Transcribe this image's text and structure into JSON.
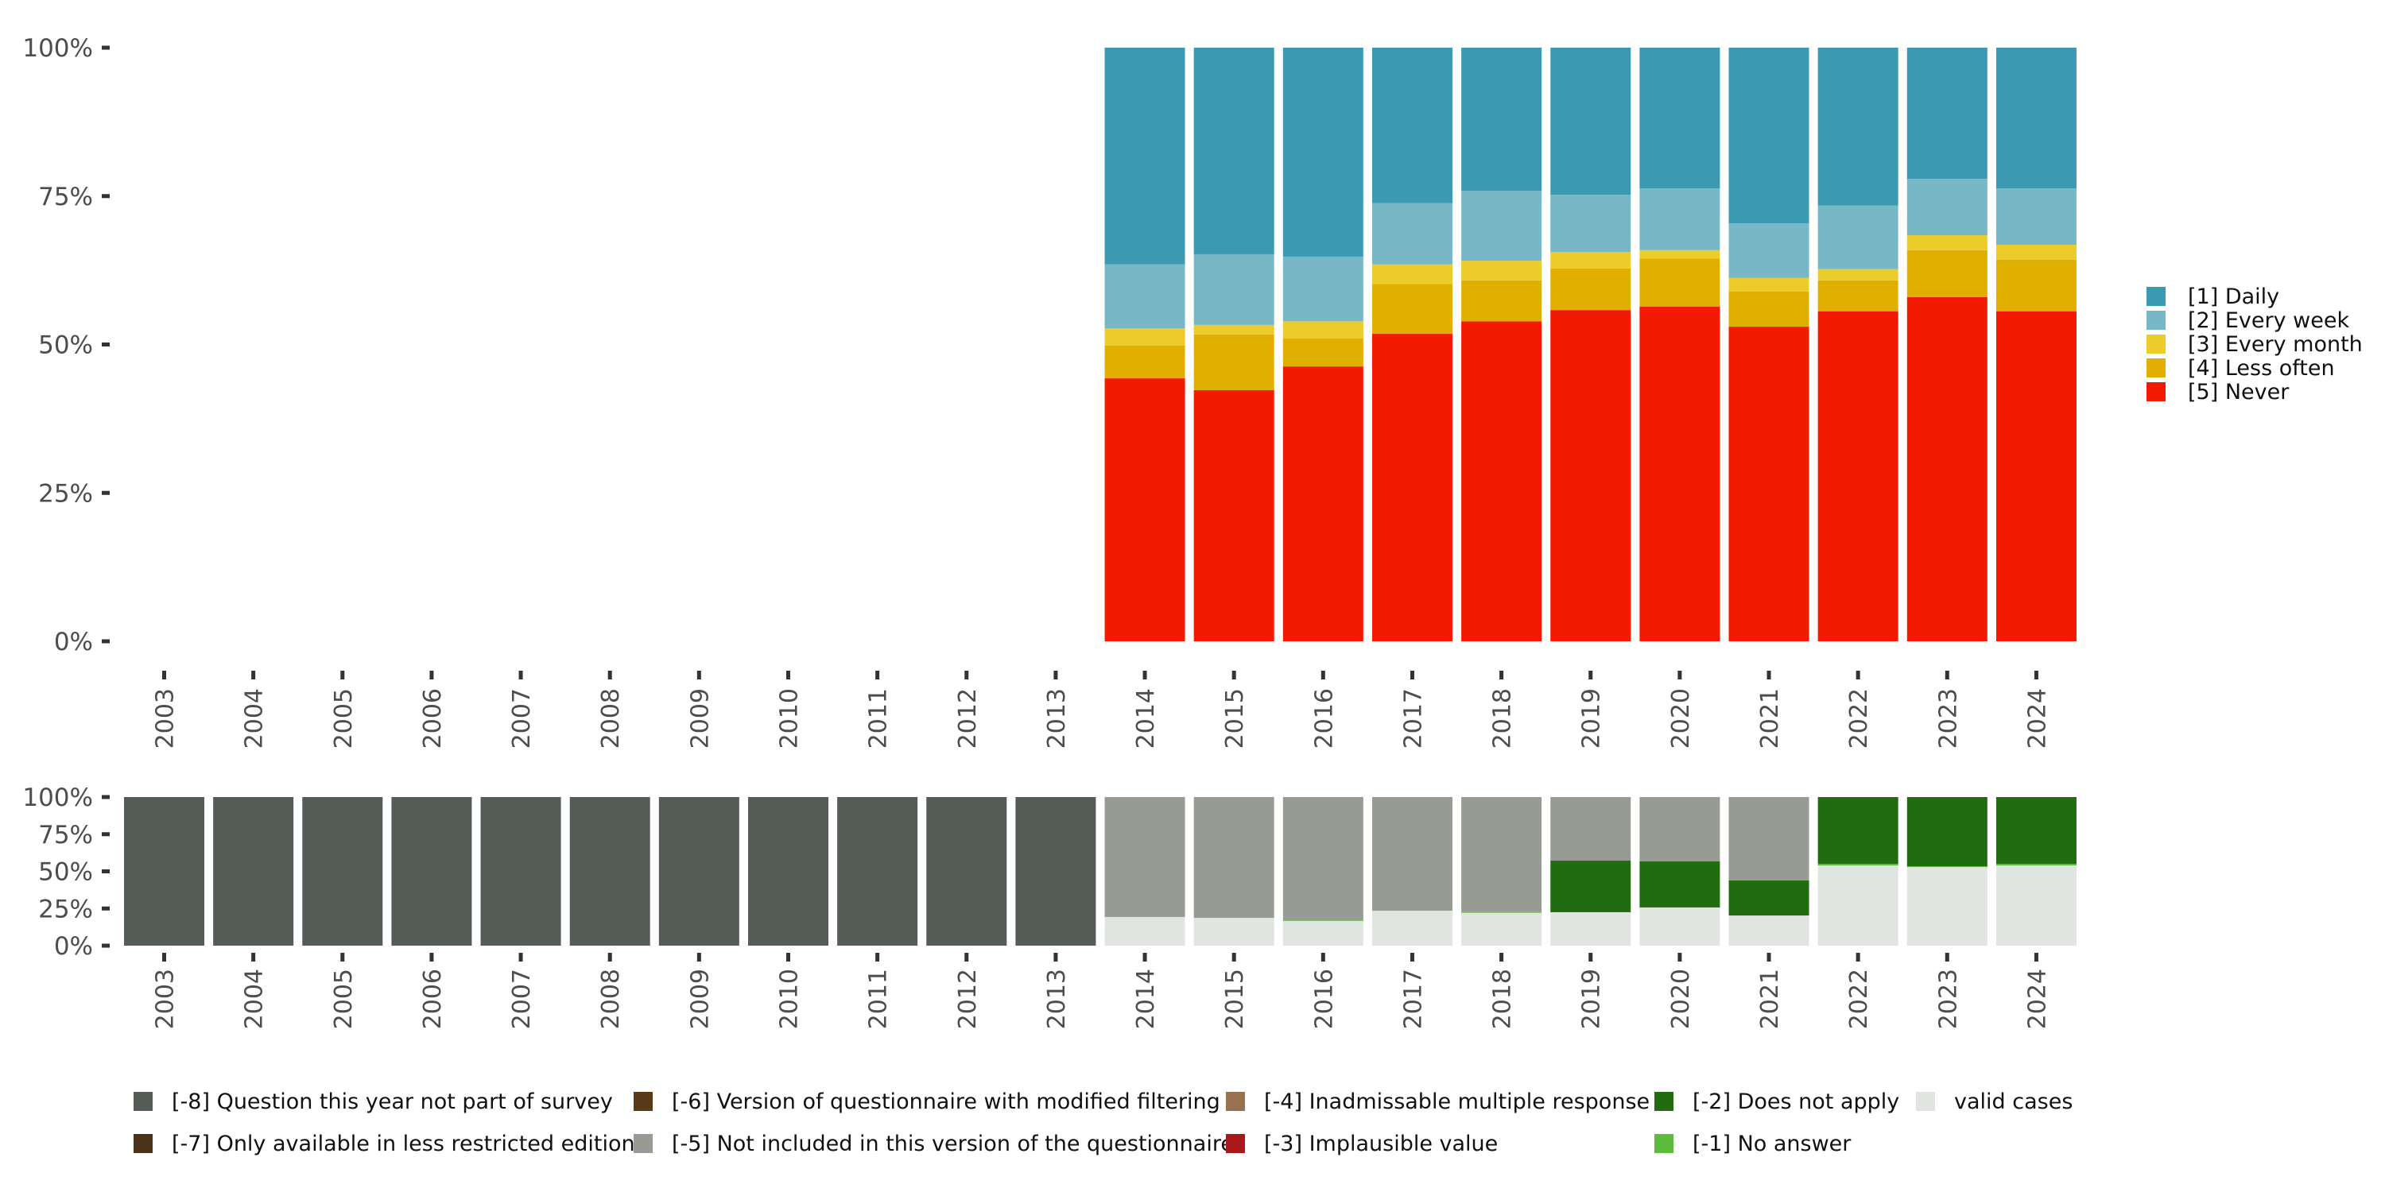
{
  "chart_data": [
    {
      "type": "bar",
      "stacked": true,
      "normalized": true,
      "title": "",
      "xlabel": "",
      "ylabel": "",
      "ylim": [
        0,
        100
      ],
      "yticks": [
        "0%",
        "25%",
        "50%",
        "75%",
        "100%"
      ],
      "grid": false,
      "legend_position": "right",
      "categories": [
        "2003",
        "2004",
        "2005",
        "2006",
        "2007",
        "2008",
        "2009",
        "2010",
        "2011",
        "2012",
        "2013",
        "2014",
        "2015",
        "2016",
        "2017",
        "2018",
        "2019",
        "2020",
        "2021",
        "2022",
        "2023",
        "2024"
      ],
      "series": [
        {
          "name": "[5] Never",
          "color": "#f21a00",
          "values": [
            null,
            null,
            null,
            null,
            null,
            null,
            null,
            null,
            null,
            null,
            null,
            44.3,
            42.3,
            46.3,
            51.8,
            53.9,
            55.8,
            56.4,
            53.0,
            55.6,
            58.0,
            55.6
          ]
        },
        {
          "name": "[4] Less often",
          "color": "#e1af00",
          "values": [
            null,
            null,
            null,
            null,
            null,
            null,
            null,
            null,
            null,
            null,
            null,
            5.5,
            9.4,
            4.7,
            8.4,
            6.9,
            7.0,
            8.1,
            5.9,
            5.2,
            7.9,
            8.7
          ]
        },
        {
          "name": "[3] Every month",
          "color": "#ebcc2a",
          "values": [
            null,
            null,
            null,
            null,
            null,
            null,
            null,
            null,
            null,
            null,
            null,
            2.9,
            1.6,
            2.9,
            3.3,
            3.3,
            2.8,
            1.4,
            2.3,
            1.9,
            2.5,
            2.5
          ]
        },
        {
          "name": "[2] Every week",
          "color": "#78b7c5",
          "values": [
            null,
            null,
            null,
            null,
            null,
            null,
            null,
            null,
            null,
            null,
            null,
            10.8,
            11.9,
            10.9,
            10.3,
            11.8,
            9.6,
            10.4,
            9.2,
            10.7,
            9.5,
            9.5
          ]
        },
        {
          "name": "[1] Daily",
          "color": "#3b9ab2",
          "values": [
            null,
            null,
            null,
            null,
            null,
            null,
            null,
            null,
            null,
            null,
            null,
            36.5,
            34.8,
            35.2,
            26.2,
            24.1,
            24.8,
            23.7,
            29.6,
            26.6,
            22.1,
            23.7
          ]
        }
      ],
      "legend_order": [
        "[1] Daily",
        "[2] Every week",
        "[3] Every month",
        "[4] Less often",
        "[5] Never"
      ]
    },
    {
      "type": "bar",
      "stacked": true,
      "normalized": true,
      "title": "",
      "xlabel": "",
      "ylabel": "",
      "ylim": [
        0,
        100
      ],
      "yticks": [
        "0%",
        "25%",
        "50%",
        "75%",
        "100%"
      ],
      "grid": false,
      "legend_position": "bottom",
      "categories": [
        "2003",
        "2004",
        "2005",
        "2006",
        "2007",
        "2008",
        "2009",
        "2010",
        "2011",
        "2012",
        "2013",
        "2014",
        "2015",
        "2016",
        "2017",
        "2018",
        "2019",
        "2020",
        "2021",
        "2022",
        "2023",
        "2024"
      ],
      "series": [
        {
          "name": "valid cases",
          "color": "#e1e5e0",
          "values": [
            0,
            0,
            0,
            0,
            0,
            0,
            0,
            0,
            0,
            0,
            0,
            19.3,
            18.7,
            16.6,
            23.5,
            22.1,
            22.5,
            25.7,
            20.3,
            54.0,
            52.9,
            54.0
          ]
        },
        {
          "name": "[-1] No answer",
          "color": "#5bbc3d",
          "values": [
            0,
            0,
            0,
            0,
            0,
            0,
            0,
            0,
            0,
            0,
            0,
            0,
            0,
            0.4,
            0,
            0.4,
            0,
            0,
            0,
            1.0,
            0.5,
            1.0
          ]
        },
        {
          "name": "[-2] Does not apply",
          "color": "#226b10",
          "values": [
            0,
            0,
            0,
            0,
            0,
            0,
            0,
            0,
            0,
            0,
            0,
            0,
            0,
            0,
            0,
            0,
            34.7,
            31.0,
            23.6,
            45.0,
            46.6,
            45.0
          ]
        },
        {
          "name": "[-3] Implausible value",
          "color": "#a8191b",
          "values": [
            0,
            0,
            0,
            0,
            0,
            0,
            0,
            0,
            0,
            0,
            0,
            0,
            0,
            0,
            0,
            0,
            0,
            0,
            0,
            0,
            0,
            0
          ]
        },
        {
          "name": "[-4] Inadmissable multiple response",
          "color": "#987250",
          "values": [
            0,
            0,
            0,
            0,
            0,
            0,
            0,
            0,
            0,
            0,
            0,
            0,
            0,
            0,
            0,
            0,
            0,
            0,
            0,
            0,
            0,
            0
          ]
        },
        {
          "name": "[-5] Not included in this version of the questionnaire",
          "color": "#979b94",
          "values": [
            0,
            0,
            0,
            0,
            0,
            0,
            0,
            0,
            0,
            0,
            0,
            80.7,
            81.3,
            83.0,
            76.5,
            77.5,
            42.8,
            43.3,
            56.1,
            0,
            0,
            0
          ]
        },
        {
          "name": "[-6] Version of questionnaire with modified filtering",
          "color": "#583a1a",
          "values": [
            0,
            0,
            0,
            0,
            0,
            0,
            0,
            0,
            0,
            0,
            0,
            0,
            0,
            0,
            0,
            0,
            0,
            0,
            0,
            0,
            0,
            0
          ]
        },
        {
          "name": "[-7] Only available in less restricted edition",
          "color": "#4a3319",
          "values": [
            0,
            0,
            0,
            0,
            0,
            0,
            0,
            0,
            0,
            0,
            0,
            0,
            0,
            0,
            0,
            0,
            0,
            0,
            0,
            0,
            0,
            0
          ]
        },
        {
          "name": "[-8] Question this year not part of survey",
          "color": "#555c55",
          "values": [
            100,
            100,
            100,
            100,
            100,
            100,
            100,
            100,
            100,
            100,
            100,
            0,
            0,
            0,
            0,
            0,
            0,
            0,
            0,
            0,
            0,
            0
          ]
        }
      ],
      "legend_rows": [
        [
          "[-8] Question this year not part of survey",
          "[-6] Version of questionnaire with modified filtering",
          "[-4] Inadmissable multiple response",
          "[-2] Does not apply",
          "valid cases"
        ],
        [
          "[-7] Only available in less restricted edition",
          "[-5] Not included in this version of the questionnaire",
          "[-3] Implausible value",
          "[-1] No answer",
          null
        ]
      ]
    }
  ]
}
